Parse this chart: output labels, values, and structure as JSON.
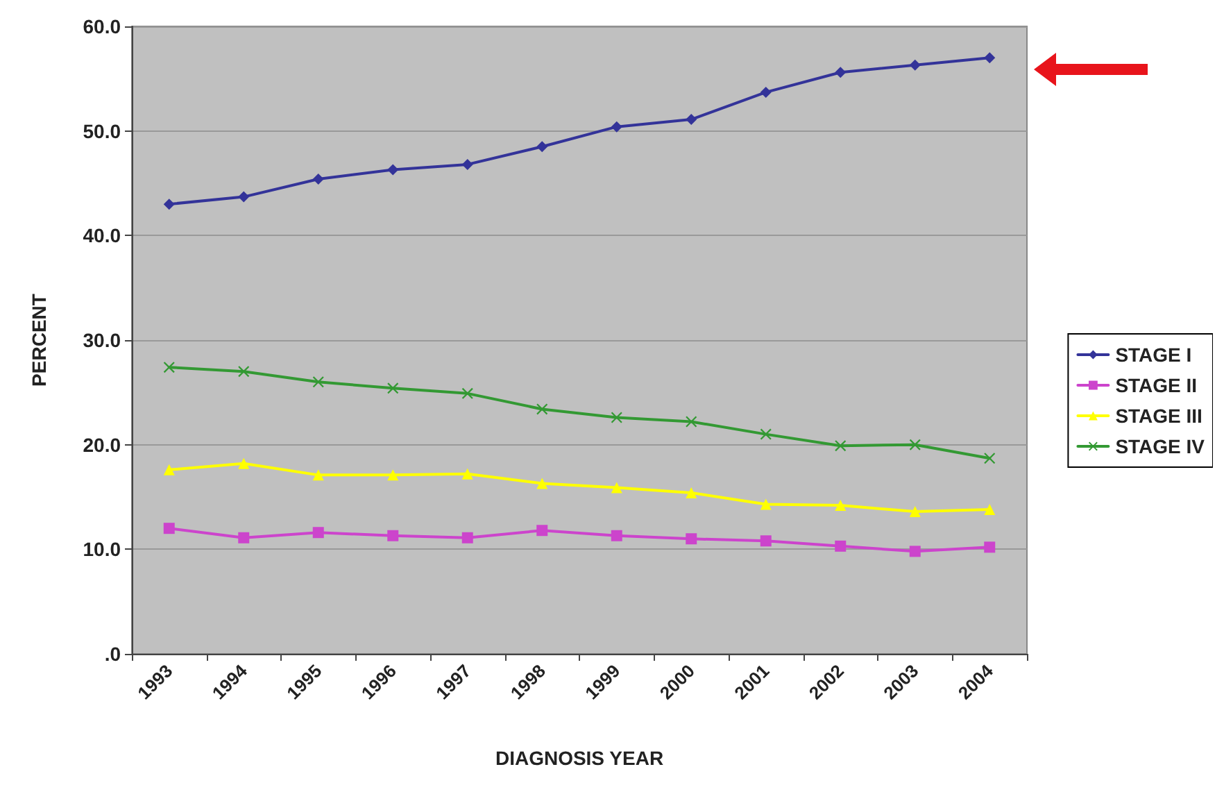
{
  "chart_data": {
    "type": "line",
    "xlabel": "DIAGNOSIS YEAR",
    "ylabel": "PERCENT",
    "categories": [
      "1993",
      "1994",
      "1995",
      "1996",
      "1997",
      "1998",
      "1999",
      "2000",
      "2001",
      "2002",
      "2003",
      "2004"
    ],
    "series": [
      {
        "name": "STAGE I",
        "color": "#333399",
        "marker": "diamond",
        "values": [
          43.0,
          43.7,
          45.4,
          46.3,
          46.8,
          48.5,
          50.4,
          51.1,
          53.7,
          55.6,
          56.3,
          57.0
        ]
      },
      {
        "name": "STAGE II",
        "color": "#cc44cc",
        "marker": "square",
        "values": [
          12.0,
          11.1,
          11.6,
          11.3,
          11.1,
          11.8,
          11.3,
          11.0,
          10.8,
          10.3,
          9.8,
          10.2
        ]
      },
      {
        "name": "STAGE III",
        "color": "#ffff00",
        "marker": "triangle",
        "values": [
          17.6,
          18.2,
          17.1,
          17.1,
          17.2,
          16.3,
          15.9,
          15.4,
          14.3,
          14.2,
          13.6,
          13.8
        ]
      },
      {
        "name": "STAGE IV",
        "color": "#339933",
        "marker": "cross",
        "values": [
          27.4,
          27.0,
          26.0,
          25.4,
          24.9,
          23.4,
          22.6,
          22.2,
          21.0,
          19.9,
          20.0,
          18.7
        ]
      }
    ],
    "ylim": [
      0,
      60
    ],
    "yticks": [
      {
        "value": 0,
        "label": ".0"
      },
      {
        "value": 10,
        "label": "10.0"
      },
      {
        "value": 20,
        "label": "20.0"
      },
      {
        "value": 30,
        "label": "30.0"
      },
      {
        "value": 40,
        "label": "40.0"
      },
      {
        "value": 50,
        "label": "50.0"
      },
      {
        "value": 60,
        "label": "60.0"
      }
    ],
    "grid": "y",
    "legend": "right",
    "line_style": "solid"
  }
}
